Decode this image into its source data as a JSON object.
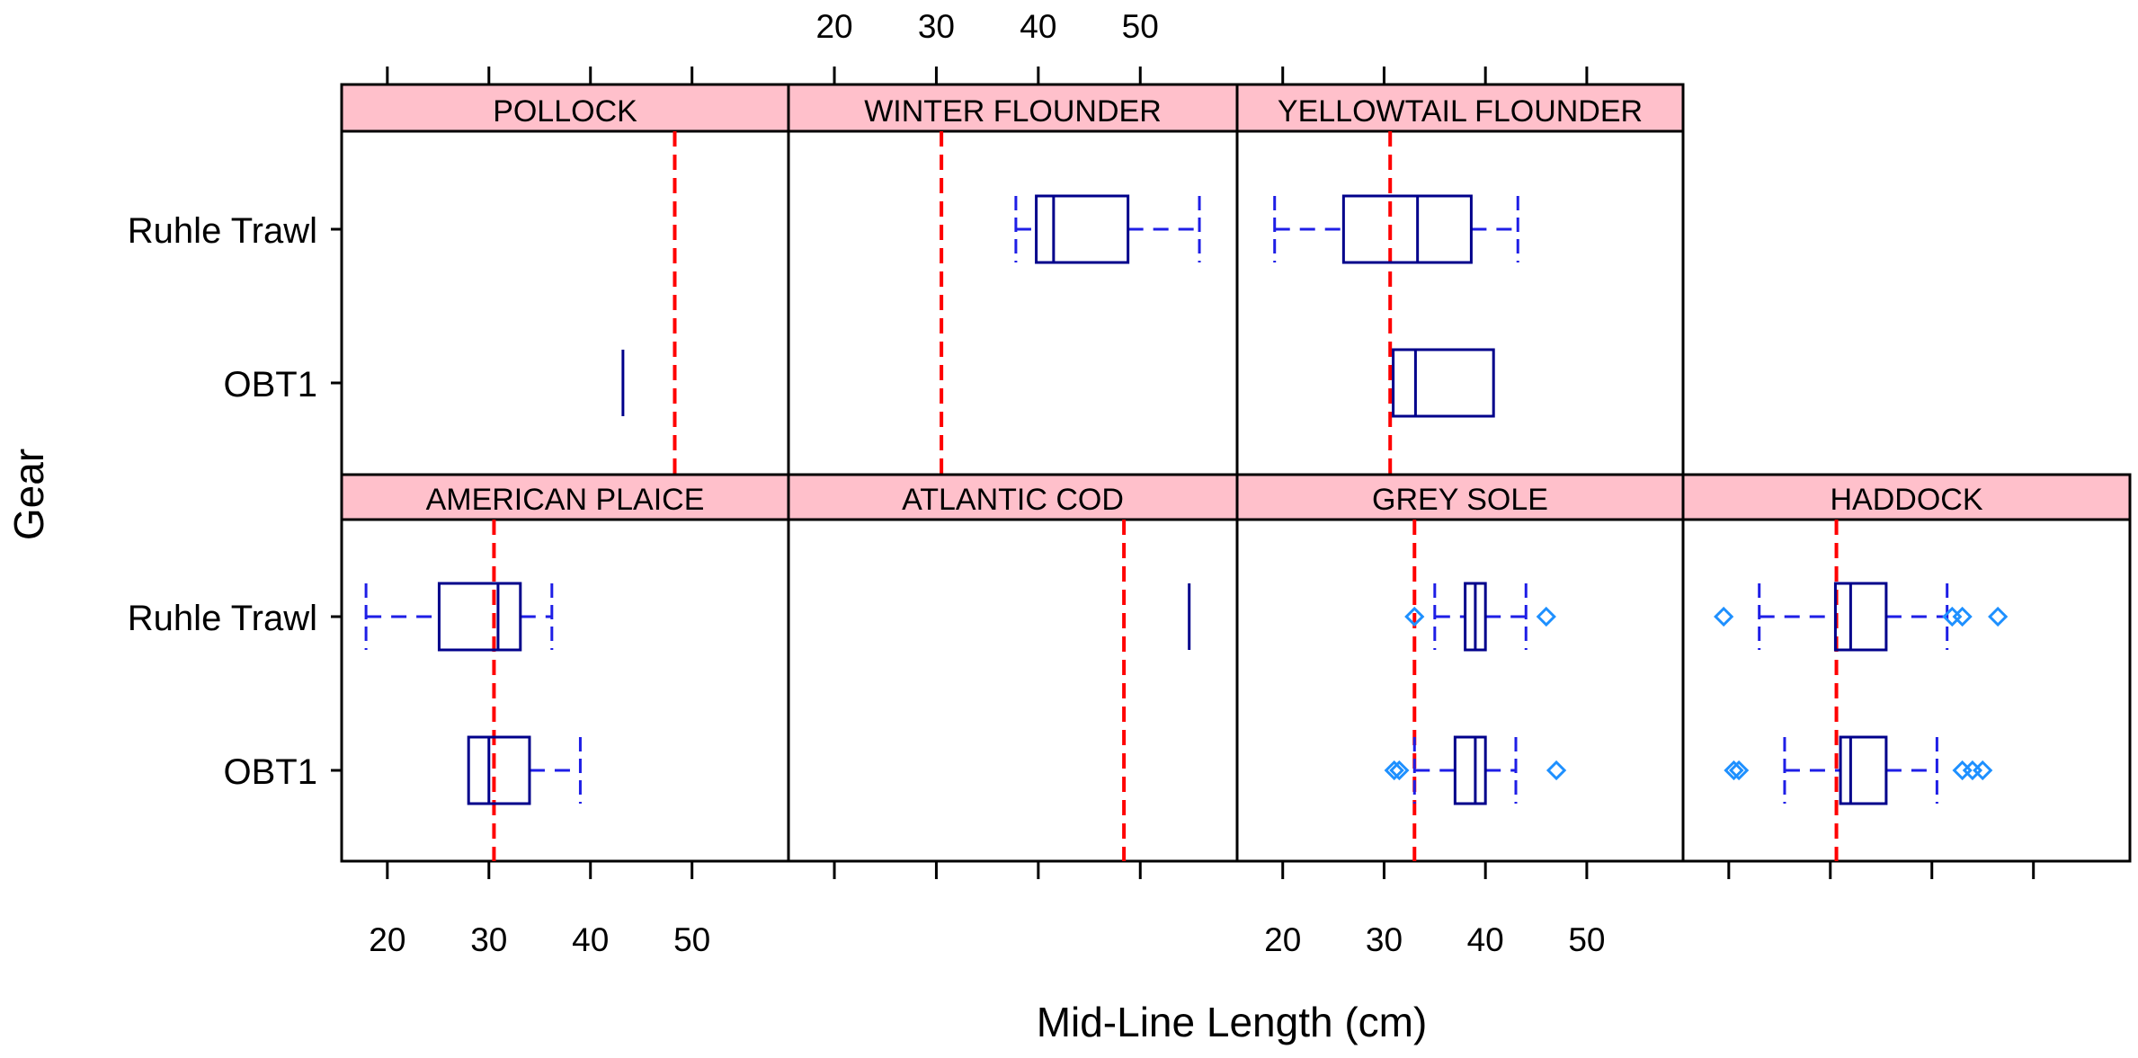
{
  "chart_data": {
    "type": "boxplot",
    "xlabel": "Mid-Line Length (cm)",
    "ylabel": "Gear",
    "categories": [
      "Ruhle Trawl",
      "OBT1"
    ],
    "x_ticks": [
      20,
      30,
      40,
      50
    ],
    "xlim": [
      15.5,
      59.5
    ],
    "colors": {
      "box": "#00008B",
      "whisker": "#1E1EE6",
      "outlier": "#1E90FF",
      "reference_line": "#FF0000",
      "strip": "#FFC0CB"
    },
    "panels": [
      {
        "name": "POLLOCK",
        "row": 0,
        "col": 0,
        "reference": 48.3,
        "boxes": [
          {
            "gear": "OBT1",
            "min": 43.2,
            "q1": 43.2,
            "median": 43.2,
            "q3": 43.2,
            "max": 43.2,
            "outliers": []
          }
        ]
      },
      {
        "name": "WINTER FLOUNDER",
        "row": 0,
        "col": 1,
        "reference": 30.5,
        "boxes": [
          {
            "gear": "Ruhle Trawl",
            "min": 37.8,
            "q1": 39.8,
            "median": 41.5,
            "q3": 48.8,
            "max": 55.8,
            "outliers": []
          }
        ]
      },
      {
        "name": "YELLOWTAIL FLOUNDER",
        "row": 0,
        "col": 2,
        "reference": 30.6,
        "boxes": [
          {
            "gear": "Ruhle Trawl",
            "min": 19.2,
            "q1": 26.0,
            "median": 33.3,
            "q3": 38.6,
            "max": 43.2,
            "outliers": []
          },
          {
            "gear": "OBT1",
            "min": 30.9,
            "q1": 30.9,
            "median": 33.1,
            "q3": 40.8,
            "max": 40.8,
            "outliers": []
          }
        ]
      },
      {
        "name": "AMERICAN PLAICE",
        "row": 1,
        "col": 0,
        "reference": 30.5,
        "boxes": [
          {
            "gear": "Ruhle Trawl",
            "min": 17.9,
            "q1": 25.1,
            "median": 30.9,
            "q3": 33.1,
            "max": 36.2,
            "outliers": []
          },
          {
            "gear": "OBT1",
            "min": 28.0,
            "q1": 28.0,
            "median": 30.0,
            "q3": 34.0,
            "max": 39.0,
            "outliers": []
          }
        ]
      },
      {
        "name": "ATLANTIC COD",
        "row": 1,
        "col": 1,
        "reference": 48.4,
        "boxes": [
          {
            "gear": "Ruhle Trawl",
            "min": 54.8,
            "q1": 54.8,
            "median": 54.8,
            "q3": 54.8,
            "max": 54.8,
            "outliers": []
          }
        ]
      },
      {
        "name": "GREY SOLE",
        "row": 1,
        "col": 2,
        "reference": 33.0,
        "boxes": [
          {
            "gear": "Ruhle Trawl",
            "min": 35.0,
            "q1": 38.0,
            "median": 39.0,
            "q3": 40.0,
            "max": 44.0,
            "outliers": [
              33.0,
              46.0
            ]
          },
          {
            "gear": "OBT1",
            "min": 33.0,
            "q1": 37.0,
            "median": 39.0,
            "q3": 40.0,
            "max": 43.0,
            "outliers": [
              31.0,
              31.5,
              47.0
            ]
          }
        ]
      },
      {
        "name": "HADDOCK",
        "row": 1,
        "col": 3,
        "reference": 30.6,
        "boxes": [
          {
            "gear": "Ruhle Trawl",
            "min": 23.0,
            "q1": 30.5,
            "median": 32.0,
            "q3": 35.5,
            "max": 41.5,
            "outliers": [
              19.5,
              42.0,
              43.0,
              46.5
            ]
          },
          {
            "gear": "OBT1",
            "min": 25.5,
            "q1": 31.0,
            "median": 32.0,
            "q3": 35.5,
            "max": 40.5,
            "outliers": [
              20.5,
              21.0,
              43.0,
              44.0,
              45.0
            ]
          }
        ]
      }
    ]
  }
}
